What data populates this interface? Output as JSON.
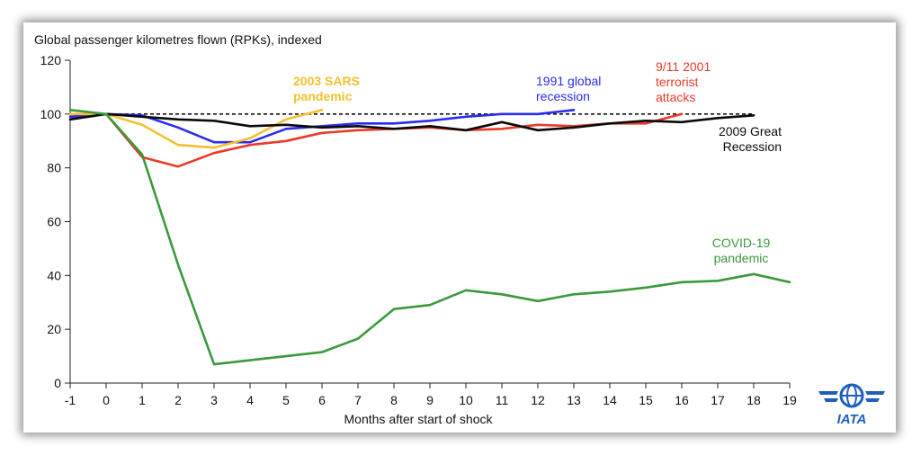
{
  "chart_data": {
    "type": "line",
    "title": "",
    "ylabel": "Global passenger kilometres flown (RPKs), indexed",
    "xlabel": "Months after start of shock",
    "ylim": [
      0,
      120
    ],
    "xlim": [
      -1,
      19
    ],
    "yticks": [
      "0",
      "20",
      "40",
      "60",
      "80",
      "100",
      "120"
    ],
    "xticks": [
      "-1",
      "0",
      "1",
      "2",
      "3",
      "4",
      "5",
      "6",
      "7",
      "8",
      "9",
      "10",
      "11",
      "12",
      "13",
      "14",
      "15",
      "16",
      "17",
      "18",
      "19"
    ],
    "reference_line": 100,
    "series": [
      {
        "name": "1991 global recession",
        "label_lines": [
          "1991 global",
          "recession"
        ],
        "color": "#2b2bf0",
        "x": [
          -1,
          0,
          1,
          2,
          3,
          4,
          5,
          6,
          7,
          8,
          9,
          10,
          11,
          12,
          13
        ],
        "values": [
          99,
          100,
          99.5,
          95,
          89.5,
          89.5,
          94.5,
          95.5,
          96.5,
          96.5,
          97.5,
          99,
          100,
          100,
          101.5
        ]
      },
      {
        "name": "9/11 2001 terrorist attacks",
        "label_lines": [
          "9/11 2001",
          "terrorist",
          "attacks"
        ],
        "color": "#ec3a2a",
        "x": [
          -1,
          0,
          1,
          2,
          3,
          4,
          5,
          6,
          7,
          8,
          9,
          10,
          11,
          12,
          13,
          14,
          15,
          16
        ],
        "values": [
          100,
          100,
          84,
          80.5,
          85.5,
          88.5,
          90,
          93,
          94,
          94.5,
          95,
          94,
          94.5,
          96,
          95.5,
          96.5,
          96.5,
          100
        ]
      },
      {
        "name": "2003 SARS pandemic",
        "label_lines": [
          "2003 SARS",
          "pandemic"
        ],
        "color": "#f2c12e",
        "x": [
          -1,
          0,
          1,
          2,
          3,
          4,
          5,
          6
        ],
        "values": [
          100,
          100,
          96,
          88.5,
          87.5,
          91,
          98,
          101.5
        ]
      },
      {
        "name": "2009 Great Recession",
        "label_lines": [
          "2009 Great",
          "Recession"
        ],
        "color": "#0a0a0a",
        "x": [
          -1,
          0,
          1,
          2,
          3,
          4,
          5,
          6,
          7,
          8,
          9,
          10,
          11,
          12,
          13,
          14,
          15,
          16,
          17,
          18
        ],
        "values": [
          98,
          100,
          99,
          98,
          97.5,
          95.5,
          96,
          95,
          95.5,
          94.5,
          95.5,
          94,
          97,
          94,
          95,
          96.5,
          97.5,
          97,
          98.5,
          99.5
        ]
      },
      {
        "name": "COVID-19 pandemic",
        "label_lines": [
          "COVID-19",
          "pandemic"
        ],
        "color": "#3a9a3a",
        "x": [
          -1,
          0,
          1,
          2,
          3,
          4,
          5,
          6,
          7,
          8,
          9,
          10,
          11,
          12,
          13,
          14,
          15,
          16,
          17,
          18,
          19
        ],
        "values": [
          101.5,
          100,
          85,
          44,
          7,
          8.5,
          10,
          11.5,
          16.5,
          27.5,
          29,
          34.5,
          33,
          30.5,
          33,
          34,
          35.5,
          37.5,
          38,
          40.5,
          37.5
        ]
      }
    ]
  },
  "logo": {
    "text": "IATA",
    "color": "#1d5fbf"
  }
}
